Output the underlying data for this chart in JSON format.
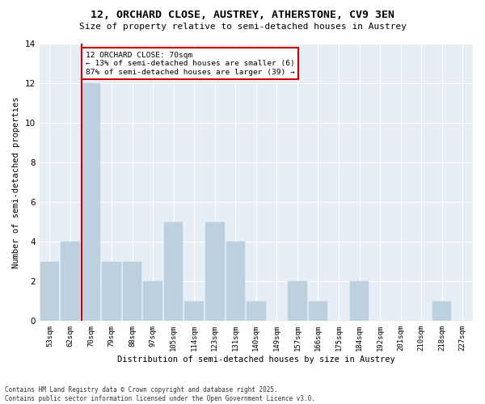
{
  "title": "12, ORCHARD CLOSE, AUSTREY, ATHERSTONE, CV9 3EN",
  "subtitle": "Size of property relative to semi-detached houses in Austrey",
  "xlabel": "Distribution of semi-detached houses by size in Austrey",
  "ylabel": "Number of semi-detached properties",
  "categories": [
    "53sqm",
    "62sqm",
    "70sqm",
    "79sqm",
    "88sqm",
    "97sqm",
    "105sqm",
    "114sqm",
    "123sqm",
    "131sqm",
    "140sqm",
    "149sqm",
    "157sqm",
    "166sqm",
    "175sqm",
    "184sqm",
    "192sqm",
    "201sqm",
    "210sqm",
    "218sqm",
    "227sqm"
  ],
  "values": [
    3,
    4,
    12,
    3,
    3,
    2,
    5,
    1,
    5,
    4,
    1,
    0,
    2,
    1,
    0,
    2,
    0,
    0,
    0,
    1,
    0
  ],
  "highlight_index": 2,
  "bar_color": "#bdd0e0",
  "vline_color": "#cc0000",
  "annotation_title": "12 ORCHARD CLOSE: 70sqm",
  "annotation_line1": "← 13% of semi-detached houses are smaller (6)",
  "annotation_line2": "87% of semi-detached houses are larger (39) →",
  "ylim": [
    0,
    14
  ],
  "yticks": [
    0,
    2,
    4,
    6,
    8,
    10,
    12,
    14
  ],
  "bg_color": "#e8eef5",
  "footer_line1": "Contains HM Land Registry data © Crown copyright and database right 2025.",
  "footer_line2": "Contains public sector information licensed under the Open Government Licence v3.0."
}
